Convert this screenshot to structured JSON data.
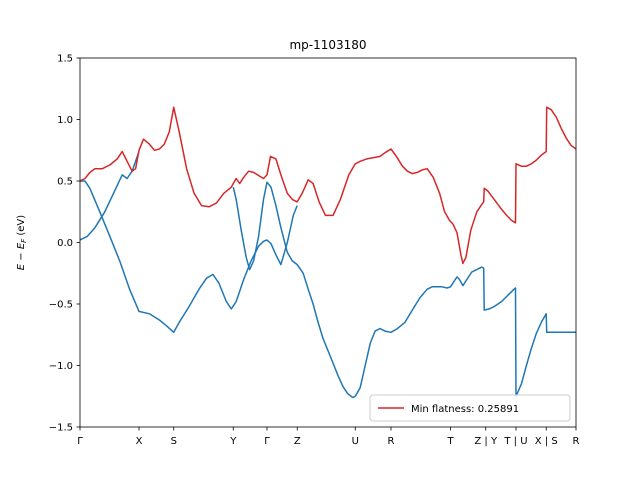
{
  "chart_data": {
    "type": "line",
    "title": "mp-1103180",
    "ylabel": "E − E_F (eV)",
    "xlabel": "",
    "ylim": [
      -1.5,
      1.5
    ],
    "xlim": [
      0,
      1
    ],
    "grid": false,
    "legend_position": "lower right",
    "y_ticks": [
      -1.5,
      -1.0,
      -0.5,
      0.0,
      0.5,
      1.0,
      1.5
    ],
    "y_tick_labels": [
      "−1.5",
      "−1.0",
      "−0.5",
      "0.0",
      "0.5",
      "1.0",
      "1.5"
    ],
    "k_ticks": [
      {
        "label": "Γ",
        "x": 0.0
      },
      {
        "label": "X",
        "x": 0.119
      },
      {
        "label": "S",
        "x": 0.189
      },
      {
        "label": "Y",
        "x": 0.309
      },
      {
        "label": "Γ",
        "x": 0.377
      },
      {
        "label": "Z",
        "x": 0.438
      },
      {
        "label": "U",
        "x": 0.555
      },
      {
        "label": "R",
        "x": 0.627
      },
      {
        "label": "T",
        "x": 0.747
      },
      {
        "label": "Z | Y",
        "x": 0.818
      },
      {
        "label": "T | U",
        "x": 0.879
      },
      {
        "label": "X | S",
        "x": 0.94
      },
      {
        "label": "R",
        "x": 1.0
      }
    ],
    "series": [
      {
        "name": "Min flatness: 0.25891",
        "color": "#d62728",
        "in_legend": true,
        "segments": [
          [
            [
              0.0,
              0.5
            ],
            [
              0.01,
              0.52
            ],
            [
              0.02,
              0.57
            ],
            [
              0.03,
              0.6
            ],
            [
              0.045,
              0.6
            ],
            [
              0.06,
              0.63
            ],
            [
              0.075,
              0.68
            ],
            [
              0.085,
              0.74
            ],
            [
              0.095,
              0.66
            ],
            [
              0.105,
              0.58
            ],
            [
              0.112,
              0.6
            ],
            [
              0.119,
              0.75
            ],
            [
              0.128,
              0.84
            ],
            [
              0.14,
              0.8
            ],
            [
              0.15,
              0.75
            ],
            [
              0.16,
              0.76
            ],
            [
              0.17,
              0.8
            ],
            [
              0.18,
              0.9
            ],
            [
              0.189,
              1.1
            ],
            [
              0.2,
              0.9
            ],
            [
              0.215,
              0.6
            ],
            [
              0.23,
              0.4
            ],
            [
              0.245,
              0.3
            ],
            [
              0.26,
              0.29
            ],
            [
              0.275,
              0.32
            ],
            [
              0.29,
              0.4
            ],
            [
              0.305,
              0.45
            ],
            [
              0.309,
              0.48
            ],
            [
              0.315,
              0.52
            ],
            [
              0.322,
              0.48
            ],
            [
              0.33,
              0.53
            ],
            [
              0.34,
              0.58
            ],
            [
              0.35,
              0.57
            ],
            [
              0.362,
              0.54
            ],
            [
              0.37,
              0.52
            ],
            [
              0.377,
              0.55
            ],
            [
              0.384,
              0.7
            ],
            [
              0.395,
              0.68
            ],
            [
              0.405,
              0.55
            ],
            [
              0.418,
              0.4
            ],
            [
              0.428,
              0.35
            ],
            [
              0.438,
              0.33
            ],
            [
              0.448,
              0.4
            ],
            [
              0.46,
              0.51
            ],
            [
              0.47,
              0.48
            ],
            [
              0.482,
              0.33
            ],
            [
              0.495,
              0.22
            ],
            [
              0.51,
              0.22
            ],
            [
              0.525,
              0.35
            ],
            [
              0.542,
              0.55
            ],
            [
              0.555,
              0.64
            ],
            [
              0.565,
              0.66
            ],
            [
              0.578,
              0.68
            ],
            [
              0.592,
              0.69
            ],
            [
              0.605,
              0.7
            ],
            [
              0.615,
              0.73
            ],
            [
              0.627,
              0.76
            ],
            [
              0.638,
              0.7
            ],
            [
              0.65,
              0.62
            ],
            [
              0.66,
              0.58
            ],
            [
              0.67,
              0.56
            ],
            [
              0.68,
              0.57
            ],
            [
              0.69,
              0.59
            ],
            [
              0.7,
              0.6
            ],
            [
              0.712,
              0.53
            ],
            [
              0.725,
              0.4
            ],
            [
              0.735,
              0.25
            ],
            [
              0.745,
              0.18
            ],
            [
              0.752,
              0.15
            ],
            [
              0.76,
              0.08
            ],
            [
              0.768,
              -0.1
            ],
            [
              0.772,
              -0.17
            ],
            [
              0.778,
              -0.12
            ],
            [
              0.788,
              0.1
            ],
            [
              0.8,
              0.25
            ],
            [
              0.81,
              0.31
            ],
            [
              0.814,
              0.33
            ],
            [
              0.815,
              0.44
            ],
            [
              0.822,
              0.42
            ],
            [
              0.835,
              0.35
            ],
            [
              0.848,
              0.28
            ],
            [
              0.86,
              0.22
            ],
            [
              0.87,
              0.18
            ],
            [
              0.878,
              0.16
            ],
            [
              0.879,
              0.64
            ],
            [
              0.89,
              0.62
            ],
            [
              0.9,
              0.62
            ],
            [
              0.91,
              0.64
            ],
            [
              0.92,
              0.67
            ],
            [
              0.93,
              0.71
            ],
            [
              0.94,
              0.74
            ],
            [
              0.941,
              1.1
            ],
            [
              0.95,
              1.08
            ],
            [
              0.96,
              1.02
            ],
            [
              0.97,
              0.93
            ],
            [
              0.98,
              0.85
            ],
            [
              0.99,
              0.79
            ],
            [
              1.0,
              0.76
            ]
          ]
        ]
      },
      {
        "name": "",
        "color": "#1f77b4",
        "in_legend": false,
        "segments": [
          [
            [
              0.0,
              0.02
            ],
            [
              0.015,
              0.05
            ],
            [
              0.03,
              0.12
            ],
            [
              0.05,
              0.25
            ],
            [
              0.07,
              0.42
            ],
            [
              0.085,
              0.55
            ],
            [
              0.095,
              0.52
            ],
            [
              0.105,
              0.58
            ],
            [
              0.119,
              0.74
            ]
          ],
          [
            [
              0.0,
              0.5
            ],
            [
              0.01,
              0.5
            ],
            [
              0.02,
              0.44
            ],
            [
              0.04,
              0.25
            ],
            [
              0.06,
              0.05
            ],
            [
              0.08,
              -0.15
            ],
            [
              0.1,
              -0.38
            ],
            [
              0.119,
              -0.56
            ],
            [
              0.14,
              -0.58
            ],
            [
              0.16,
              -0.63
            ],
            [
              0.175,
              -0.68
            ],
            [
              0.189,
              -0.73
            ],
            [
              0.2,
              -0.65
            ],
            [
              0.22,
              -0.52
            ],
            [
              0.24,
              -0.38
            ],
            [
              0.255,
              -0.29
            ],
            [
              0.268,
              -0.26
            ],
            [
              0.28,
              -0.33
            ],
            [
              0.295,
              -0.48
            ],
            [
              0.305,
              -0.54
            ],
            [
              0.315,
              -0.48
            ],
            [
              0.33,
              -0.3
            ],
            [
              0.345,
              -0.15
            ],
            [
              0.36,
              -0.03
            ],
            [
              0.37,
              0.01
            ],
            [
              0.377,
              0.02
            ],
            [
              0.385,
              -0.01
            ],
            [
              0.395,
              -0.1
            ],
            [
              0.405,
              -0.18
            ],
            [
              0.418,
              0.0
            ],
            [
              0.43,
              0.22
            ],
            [
              0.438,
              0.3
            ]
          ],
          [
            [
              0.309,
              0.45
            ],
            [
              0.315,
              0.35
            ],
            [
              0.325,
              0.1
            ],
            [
              0.335,
              -0.12
            ],
            [
              0.342,
              -0.22
            ],
            [
              0.35,
              -0.15
            ],
            [
              0.36,
              0.05
            ],
            [
              0.37,
              0.35
            ],
            [
              0.377,
              0.49
            ],
            [
              0.385,
              0.45
            ],
            [
              0.395,
              0.3
            ],
            [
              0.405,
              0.12
            ],
            [
              0.418,
              -0.08
            ],
            [
              0.428,
              -0.15
            ],
            [
              0.438,
              -0.18
            ]
          ],
          [
            [
              0.438,
              -0.18
            ],
            [
              0.45,
              -0.25
            ],
            [
              0.46,
              -0.38
            ],
            [
              0.47,
              -0.5
            ],
            [
              0.48,
              -0.65
            ],
            [
              0.49,
              -0.78
            ],
            [
              0.5,
              -0.88
            ],
            [
              0.51,
              -0.98
            ],
            [
              0.52,
              -1.08
            ],
            [
              0.53,
              -1.17
            ],
            [
              0.54,
              -1.23
            ],
            [
              0.55,
              -1.26
            ],
            [
              0.555,
              -1.25
            ],
            [
              0.565,
              -1.18
            ],
            [
              0.575,
              -1.0
            ],
            [
              0.585,
              -0.82
            ],
            [
              0.595,
              -0.72
            ],
            [
              0.605,
              -0.7
            ],
            [
              0.615,
              -0.72
            ],
            [
              0.627,
              -0.73
            ],
            [
              0.64,
              -0.7
            ],
            [
              0.655,
              -0.65
            ],
            [
              0.67,
              -0.55
            ],
            [
              0.685,
              -0.45
            ],
            [
              0.7,
              -0.38
            ],
            [
              0.71,
              -0.36
            ],
            [
              0.72,
              -0.36
            ],
            [
              0.73,
              -0.36
            ],
            [
              0.74,
              -0.37
            ],
            [
              0.747,
              -0.36
            ],
            [
              0.755,
              -0.31
            ],
            [
              0.76,
              -0.28
            ],
            [
              0.765,
              -0.3
            ],
            [
              0.772,
              -0.35
            ],
            [
              0.78,
              -0.3
            ],
            [
              0.79,
              -0.24
            ],
            [
              0.8,
              -0.22
            ],
            [
              0.81,
              -0.2
            ],
            [
              0.814,
              -0.21
            ],
            [
              0.815,
              -0.55
            ],
            [
              0.825,
              -0.54
            ],
            [
              0.835,
              -0.52
            ],
            [
              0.85,
              -0.48
            ],
            [
              0.865,
              -0.42
            ],
            [
              0.875,
              -0.38
            ],
            [
              0.878,
              -0.37
            ],
            [
              0.879,
              -1.25
            ],
            [
              0.89,
              -1.15
            ],
            [
              0.9,
              -1.0
            ],
            [
              0.91,
              -0.86
            ],
            [
              0.92,
              -0.74
            ],
            [
              0.93,
              -0.65
            ],
            [
              0.94,
              -0.58
            ],
            [
              0.941,
              -0.73
            ],
            [
              0.96,
              -0.73
            ],
            [
              0.98,
              -0.73
            ],
            [
              1.0,
              -0.73
            ]
          ]
        ]
      }
    ]
  }
}
